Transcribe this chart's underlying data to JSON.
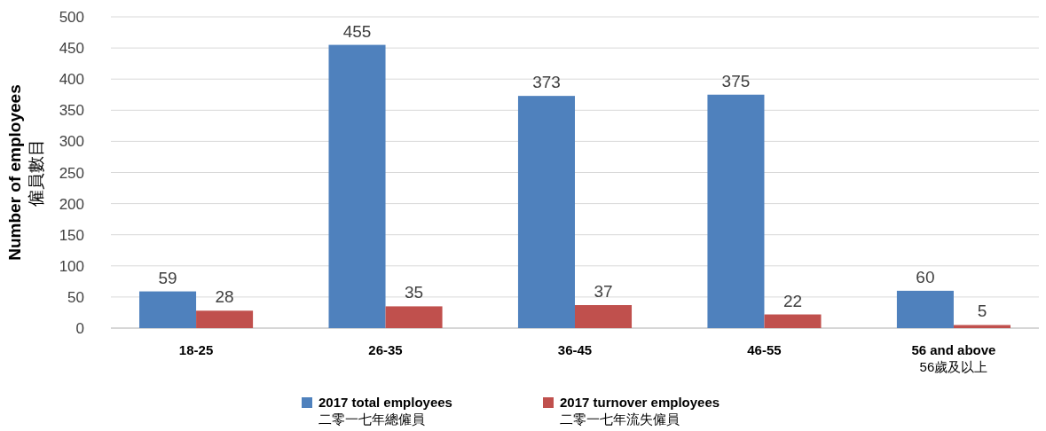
{
  "chart_data": {
    "type": "bar",
    "ylabel": "Number of employees\n僱員數目",
    "categories": [
      "18-25",
      "26-35",
      "36-45",
      "46-55",
      "56 and above\n56歲及以上"
    ],
    "series": [
      {
        "name": "2017 total employees\n二零一七年總僱員",
        "color": "#4f81bd",
        "values": [
          59,
          455,
          373,
          375,
          60
        ]
      },
      {
        "name": "2017 turnover employees\n二零一七年流失僱員",
        "color": "#c0504d",
        "values": [
          28,
          35,
          37,
          22,
          5
        ]
      }
    ],
    "ylim": [
      0,
      500
    ],
    "yticks": [
      0,
      50,
      100,
      150,
      200,
      250,
      300,
      350,
      400,
      450,
      500
    ],
    "grid": "y",
    "legend": "bottom",
    "data_labels": true
  }
}
